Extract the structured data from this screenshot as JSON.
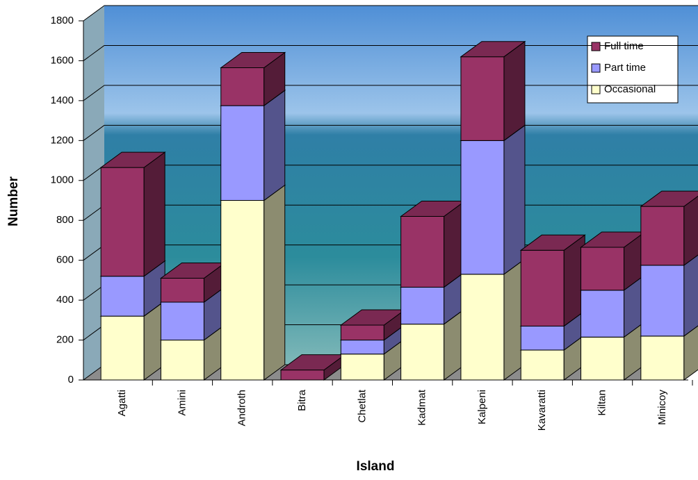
{
  "chart_data": {
    "type": "bar3d_stacked",
    "x_label": "Island",
    "y_label": "Number",
    "categories": [
      "Agatti",
      "Amini",
      "Androth",
      "Bitra",
      "Chetlat",
      "Kadmat",
      "Kalpeni",
      "Kavaratti",
      "Kiltan",
      "Minicoy"
    ],
    "series": [
      {
        "name": "Occasional",
        "color": "#ffffcc",
        "values": [
          320,
          200,
          900,
          0,
          130,
          280,
          530,
          150,
          215,
          220
        ]
      },
      {
        "name": "Part time",
        "color": "#9999ff",
        "values": [
          200,
          190,
          475,
          0,
          70,
          185,
          670,
          120,
          235,
          355
        ]
      },
      {
        "name": "Full time",
        "color": "#993366",
        "values": [
          545,
          120,
          190,
          50,
          75,
          355,
          420,
          380,
          215,
          295
        ]
      }
    ],
    "ylim": [
      0,
      1800
    ],
    "yticks": [
      0,
      200,
      400,
      600,
      800,
      1000,
      1200,
      1400,
      1600,
      1800
    ],
    "grid": true,
    "legend": "top-right"
  }
}
